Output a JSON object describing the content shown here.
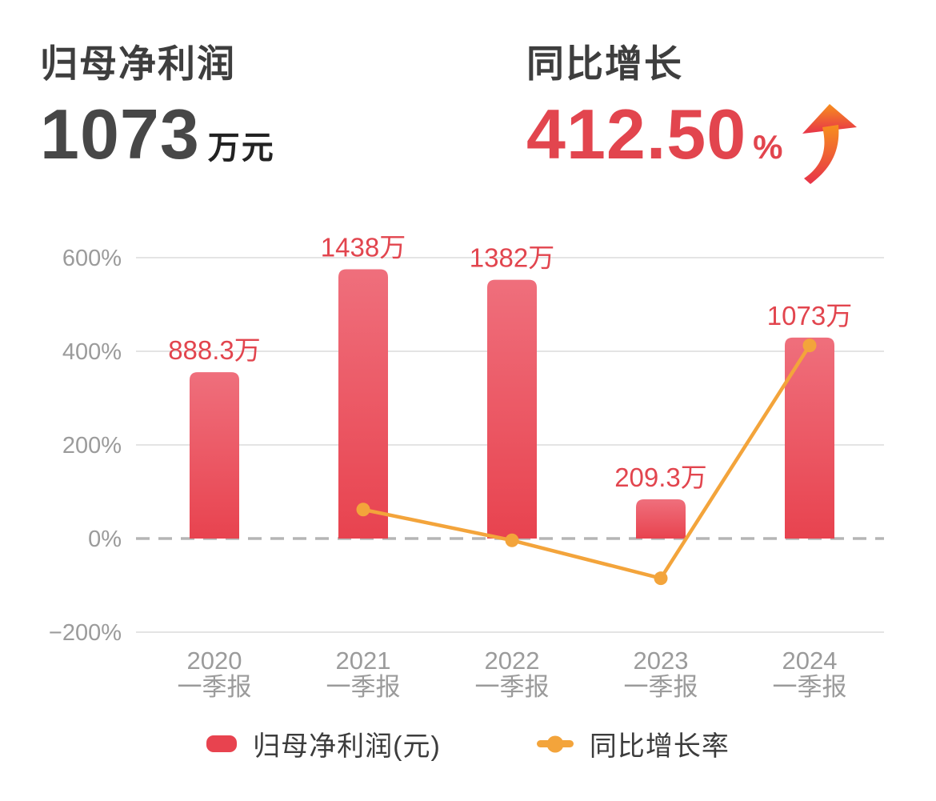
{
  "header": {
    "left": {
      "title": "归母净利润",
      "value": "1073",
      "unit": "万元"
    },
    "right": {
      "title": "同比增长",
      "value": "412.50",
      "unit": "%",
      "arrow_icon": "curved-up-arrow"
    }
  },
  "chart_data": {
    "type": "bar+line combo",
    "categories": [
      "2020 一季报",
      "2021 一季报",
      "2022 一季报",
      "2023 一季报",
      "2024 一季报"
    ],
    "category_year": [
      "2020",
      "2021",
      "2022",
      "2023",
      "2024"
    ],
    "category_period": "一季报",
    "bar_series": {
      "name": "归母净利润(元)",
      "unit": "万元",
      "values_wan": [
        888.3,
        1438,
        1382,
        209.3,
        1073
      ],
      "labels": [
        "888.3万",
        "1438万",
        "1382万",
        "209.3万",
        "1073万"
      ]
    },
    "line_series": {
      "name": "同比增长率",
      "unit": "%",
      "values_pct": [
        null,
        61.9,
        -3.9,
        -84.9,
        412.5
      ]
    },
    "y_axis": {
      "unit": "%",
      "tick_values": [
        600,
        400,
        200,
        0,
        -200
      ],
      "tick_labels": [
        "600%",
        "400%",
        "200%",
        "0%",
        "−200%"
      ],
      "zero_line_style": "dashed",
      "grid": true
    },
    "legend": [
      {
        "label": "归母净利润(元)",
        "marker": "bar-swatch"
      },
      {
        "label": "同比增长率",
        "marker": "line-dot"
      }
    ],
    "colors": {
      "bar_top": "#ef6f7c",
      "bar_bottom": "#e8434f",
      "bar_label": "#e2454e",
      "line": "#f3a43b",
      "axis_text": "#9b9b9b",
      "grid": "#e4e4e4",
      "zero_line": "#b5b5b5",
      "header_dark": "#3e3e3e",
      "header_red": "#e2454e",
      "arrow_top": "#f78f1e",
      "arrow_bottom": "#e73349"
    }
  }
}
